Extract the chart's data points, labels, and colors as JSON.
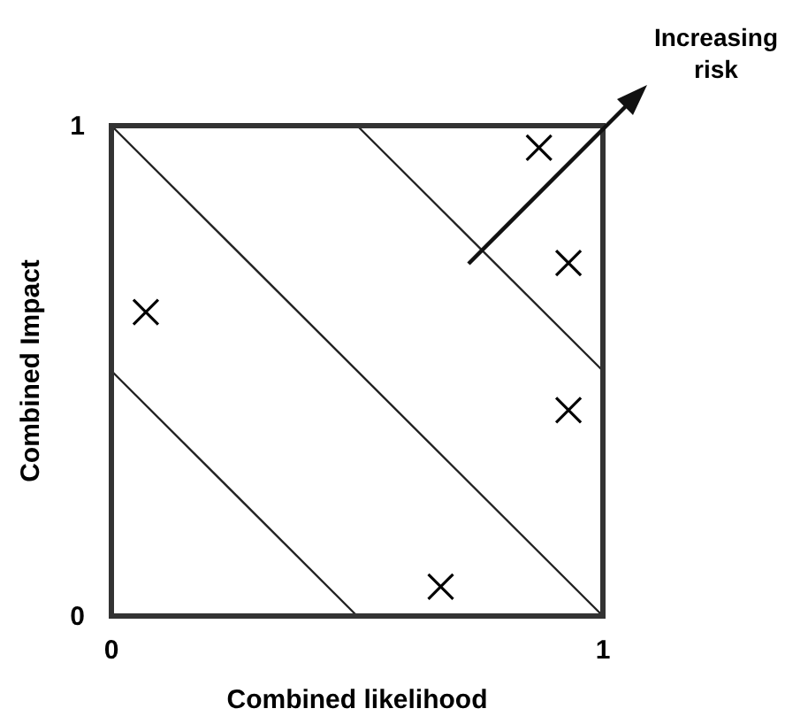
{
  "chart_data": {
    "type": "scatter",
    "xlabel": "Combined likelihood",
    "ylabel": "Combined Impact",
    "xlim": [
      0,
      1
    ],
    "ylim": [
      0,
      1
    ],
    "xticks": [
      0,
      1
    ],
    "yticks": [
      0,
      1
    ],
    "annotations": [
      "Increasing risk"
    ],
    "series": [
      {
        "color": "#000000",
        "marker": "cross",
        "x": [
          0.87,
          0.93,
          0.07,
          0.93,
          0.67
        ],
        "values": [
          0.955,
          0.72,
          0.62,
          0.42,
          0.06
        ]
      },
      {
        "type": "line",
        "color": "#222222",
        "x": [
          0,
          0.5
        ],
        "values": [
          0.5,
          0
        ]
      },
      {
        "type": "line",
        "color": "#222222",
        "x": [
          0,
          1
        ],
        "values": [
          1,
          0
        ]
      },
      {
        "type": "line",
        "color": "#222222",
        "x": [
          0.5,
          1
        ],
        "values": [
          1,
          0.5
        ]
      }
    ]
  }
}
